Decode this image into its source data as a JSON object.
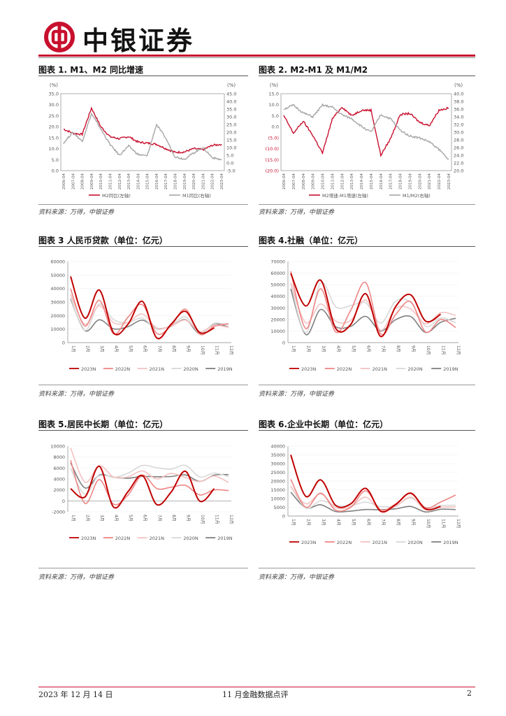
{
  "header": {
    "brand": "中银证券",
    "brand_color": "#c8102e"
  },
  "figures": [
    {
      "title": "图表 1. M1、M2 同比增速",
      "source": "资料来源：万得，中银证券"
    },
    {
      "title": "图表 2. M2-M1 及 M1/M2",
      "source": "资料来源：万得，中银证券"
    },
    {
      "title": "图表 3 人民币贷款（单位：亿元）",
      "source": "资料来源：万得，中银证券"
    },
    {
      "title": "图表 4.社融（单位：亿元）",
      "source": "资料来源：万得，中银证券"
    },
    {
      "title": "图表 5.居民中长期（单位：亿元）",
      "source": "资料来源：万得，中银证券"
    },
    {
      "title": "图表 6.企业中长期（单位：亿元）",
      "source": "资料来源：万得，中银证券"
    }
  ],
  "footer": {
    "date": "2023 年 12 月 14 日",
    "doc_title": "11 月金融数据点评",
    "page": "2"
  },
  "chart_data": [
    {
      "type": "line",
      "title": "图表 1. M1、M2 同比增速",
      "left_unit": "(%)",
      "right_unit": "(%)",
      "left_ylim": [
        0,
        35
      ],
      "right_ylim": [
        -5,
        45
      ],
      "left_ticks": [
        "35.0",
        "30.0",
        "25.0",
        "20.0",
        "15.0",
        "10.0",
        "5.0",
        "0.0"
      ],
      "right_ticks": [
        "45.0",
        "40.0",
        "35.0",
        "30.0",
        "25.0",
        "20.0",
        "15.0",
        "10.0",
        "5.0",
        "0.0",
        "-5.0"
      ],
      "x_labels": [
        "2006-04",
        "2007-04",
        "2008-04",
        "2009-04",
        "2010-04",
        "2011-04",
        "2012-04",
        "2013-04",
        "2014-04",
        "2015-04",
        "2016-04",
        "2017-04",
        "2018-04",
        "2019-04",
        "2020-04",
        "2021-04",
        "2022-04",
        "2023-04"
      ],
      "series": [
        {
          "name": "M2同比(左轴)",
          "color": "#c8102e",
          "axis": "left",
          "values": [
            18.9,
            17.0,
            16.5,
            28.5,
            20.0,
            15.4,
            14.5,
            15.5,
            13.0,
            12.5,
            12.0,
            10.0,
            8.3,
            8.5,
            10.0,
            9.5,
            11.5,
            12.0
          ]
        },
        {
          "name": "M1同比(右轴)",
          "color": "#a6a6a6",
          "axis": "right",
          "values": [
            13.0,
            20.0,
            14.0,
            32.0,
            22.0,
            12.0,
            5.0,
            11.0,
            5.5,
            4.5,
            25.0,
            16.0,
            4.0,
            2.5,
            6.5,
            10.0,
            3.5,
            2.0
          ]
        }
      ]
    },
    {
      "type": "line",
      "title": "图表 2. M2-M1 及 M1/M2",
      "left_unit": "(%)",
      "right_unit": "(%)",
      "left_ylim": [
        -20,
        15
      ],
      "right_ylim": [
        20,
        40
      ],
      "left_ticks": [
        "15.0",
        "10.0",
        "5.0",
        "0.0",
        "(5.0)",
        "(10.0)",
        "(15.0)",
        "(20.0)"
      ],
      "right_ticks": [
        "40.0",
        "38.0",
        "36.0",
        "34.0",
        "32.0",
        "30.0",
        "28.0",
        "26.0",
        "24.0",
        "22.0",
        "20.0"
      ],
      "x_labels": [
        "2006-04",
        "2007-04",
        "2008-04",
        "2009-04",
        "2010-04",
        "2011-04",
        "2012-04",
        "2013-04",
        "2014-04",
        "2015-04",
        "2016-04",
        "2017-04",
        "2018-04",
        "2019-04",
        "2020-04",
        "2021-04",
        "2022-04",
        "2023-04"
      ],
      "series": [
        {
          "name": "M2增速-M1增速(左轴)",
          "color": "#c8102e",
          "axis": "left",
          "values": [
            5.0,
            -3.0,
            2.5,
            -4.0,
            -12.0,
            3.5,
            9.0,
            5.0,
            7.5,
            7.5,
            -13.0,
            -5.5,
            5.5,
            6.0,
            2.0,
            0.5,
            7.5,
            8.5
          ]
        },
        {
          "name": "M1/M2(右轴)",
          "color": "#a6a6a6",
          "axis": "right",
          "values": [
            36.0,
            37.0,
            35.0,
            34.0,
            37.0,
            36.5,
            34.5,
            33.5,
            31.5,
            30.0,
            34.5,
            33.5,
            30.5,
            29.0,
            28.5,
            27.5,
            25.5,
            23.0
          ]
        }
      ]
    },
    {
      "type": "line",
      "title": "图表 3 人民币贷款（单位：亿元）",
      "ylim": [
        0,
        60000
      ],
      "y_ticks": [
        "60000",
        "50000",
        "40000",
        "30000",
        "20000",
        "10000",
        "0"
      ],
      "categories": [
        "1月",
        "2月",
        "3月",
        "4月",
        "5月",
        "6月",
        "7月",
        "8月",
        "9月",
        "10月",
        "11月",
        "12月"
      ],
      "series": [
        {
          "name": "2023N",
          "color": "#c00000",
          "values": [
            49000,
            18100,
            38900,
            7188,
            13600,
            30500,
            3459,
            13600,
            23100,
            7384,
            10900,
            null
          ]
        },
        {
          "name": "2022N",
          "color": "#ee8686",
          "values": [
            39800,
            12300,
            31300,
            6454,
            18900,
            28100,
            6790,
            12500,
            24700,
            6152,
            12100,
            14000
          ]
        },
        {
          "name": "2021N",
          "color": "#f4c2c2",
          "values": [
            35800,
            13600,
            27300,
            14700,
            15000,
            21200,
            10800,
            12200,
            16600,
            8262,
            12700,
            11300
          ]
        },
        {
          "name": "2020N",
          "color": "#d9d9d9",
          "values": [
            33400,
            9057,
            28500,
            17000,
            14800,
            18100,
            9927,
            12800,
            19000,
            6898,
            14300,
            12600
          ]
        },
        {
          "name": "2019N",
          "color": "#7f7f7f",
          "values": [
            32300,
            8858,
            16900,
            10200,
            11800,
            16600,
            10600,
            12100,
            16900,
            6613,
            13900,
            11400
          ]
        }
      ]
    },
    {
      "type": "line",
      "title": "图表 4.社融（单位：亿元）",
      "ylim": [
        0,
        70000
      ],
      "y_ticks": [
        "70000",
        "60000",
        "50000",
        "40000",
        "30000",
        "20000",
        "10000",
        "0"
      ],
      "categories": [
        "1月",
        "2月",
        "3月",
        "4月",
        "5月",
        "6月",
        "7月",
        "8月",
        "9月",
        "10月",
        "11月",
        "12月"
      ],
      "series": [
        {
          "name": "2023N",
          "color": "#c00000",
          "values": [
            59800,
            31600,
            53800,
            12200,
            15600,
            42200,
            5282,
            31200,
            41300,
            18500,
            24500,
            null
          ]
        },
        {
          "name": "2022N",
          "color": "#ee8686",
          "values": [
            61700,
            12200,
            46500,
            9102,
            27900,
            51700,
            7561,
            24300,
            35300,
            9079,
            19900,
            13100
          ]
        },
        {
          "name": "2021N",
          "color": "#f4c2c2",
          "values": [
            51700,
            17100,
            33400,
            18500,
            19200,
            36700,
            10600,
            29600,
            29000,
            16200,
            25800,
            23500
          ]
        },
        {
          "name": "2020N",
          "color": "#d9d9d9",
          "values": [
            50700,
            8554,
            51800,
            30900,
            31900,
            34300,
            16900,
            35800,
            34800,
            14000,
            21300,
            17200
          ]
        },
        {
          "name": "2019N",
          "color": "#7f7f7f",
          "values": [
            46400,
            7030,
            28600,
            13700,
            14000,
            22600,
            10100,
            19800,
            22500,
            8786,
            17500,
            21000
          ]
        }
      ]
    },
    {
      "type": "line",
      "title": "图表 5.居民中长期（单位：亿元）",
      "ylim": [
        -2000,
        10000
      ],
      "y_ticks": [
        "10000",
        "8000",
        "6000",
        "4000",
        "2000",
        "0",
        "-2000"
      ],
      "categories": [
        "1月",
        "2月",
        "3月",
        "4月",
        "5月",
        "6月",
        "7月",
        "8月",
        "9月",
        "10月",
        "11月",
        "12月"
      ],
      "series": [
        {
          "name": "2023N",
          "color": "#c00000",
          "values": [
            2231,
            707,
            6307,
            -1156,
            1684,
            4630,
            -672,
            1600,
            5399,
            -59,
            2227,
            null
          ]
        },
        {
          "name": "2022N",
          "color": "#ee8686",
          "values": [
            7424,
            -459,
            3882,
            -605,
            1059,
            4679,
            2258,
            2499,
            2826,
            1091,
            2003,
            1871
          ]
        },
        {
          "name": "2021N",
          "color": "#f4c2c2",
          "values": [
            9698,
            3443,
            6388,
            4346,
            4400,
            5452,
            4018,
            5010,
            4263,
            3514,
            4540,
            3350
          ]
        },
        {
          "name": "2020N",
          "color": "#d9d9d9",
          "values": [
            5926,
            1230,
            4813,
            4280,
            5048,
            6467,
            6055,
            5805,
            6475,
            4376,
            5089,
            4410
          ]
        },
        {
          "name": "2019N",
          "color": "#7f7f7f",
          "values": [
            6934,
            2363,
            4690,
            4316,
            4139,
            4468,
            4413,
            4443,
            4736,
            3545,
            4703,
            4794
          ]
        }
      ]
    },
    {
      "type": "line",
      "title": "图表 6.企业中长期（单位：亿元）",
      "ylim": [
        0,
        40000
      ],
      "y_ticks": [
        "40000",
        "35000",
        "30000",
        "25000",
        "20000",
        "15000",
        "10000",
        "5000",
        "0"
      ],
      "categories": [
        "1月",
        "2月",
        "3月",
        "4月",
        "5月",
        "6月",
        "7月",
        "8月",
        "9月",
        "10月",
        "11月",
        "12月"
      ],
      "series": [
        {
          "name": "2023N",
          "color": "#c00000",
          "values": [
            35000,
            11300,
            20700,
            6033,
            6952,
            15800,
            2712,
            6567,
            13000,
            4025,
            5475,
            null
          ]
        },
        {
          "name": "2022N",
          "color": "#ee8686",
          "values": [
            21000,
            5053,
            13100,
            3316,
            4945,
            14400,
            3602,
            6949,
            13300,
            4663,
            8008,
            12000
          ]
        },
        {
          "name": "2021N",
          "color": "#f4c2c2",
          "values": [
            16900,
            6980,
            12700,
            4811,
            5235,
            10800,
            3387,
            5508,
            10800,
            3519,
            4943,
            5227
          ]
        },
        {
          "name": "2020N",
          "color": "#d9d9d9",
          "values": [
            17300,
            4597,
            8805,
            6048,
            5803,
            7999,
            5376,
            6011,
            10300,
            5018,
            5961,
            6180
          ]
        },
        {
          "name": "2019N",
          "color": "#7f7f7f",
          "values": [
            13700,
            4733,
            6453,
            2566,
            2851,
            3738,
            3598,
            4106,
            5461,
            2303,
            3869,
            3681
          ]
        }
      ]
    }
  ]
}
